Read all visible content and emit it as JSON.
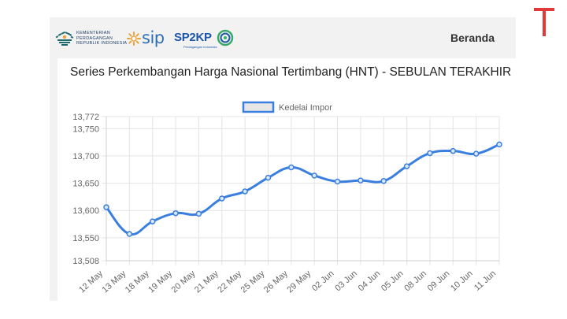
{
  "header": {
    "kemendag_lines": [
      "KEMENTERIAN",
      "PERDAGANGAN",
      "REPUBLIK INDONESIA"
    ],
    "sip_label": "sip",
    "sp2kp_label": "SP2KP",
    "sp2kp_sub": "Perdagangan Indonesia",
    "nav_home": "Beranda"
  },
  "colors": {
    "series": "#3a7fe0",
    "brand_t": "#e03a3a",
    "kemendag": "#1f6b6b",
    "sip": "#2f6fb5",
    "sp2kp": "#1d58a8"
  },
  "chart_data": {
    "type": "line",
    "title": "Series Perkembangan Harga Nasional Tertimbang (HNT) - SEBULAN TERAKHIR",
    "categories": [
      "12 May",
      "13 May",
      "18 May",
      "19 May",
      "20 May",
      "21 May",
      "22 May",
      "25 May",
      "26 May",
      "29 May",
      "02 Jun",
      "03 Jun",
      "04 Jun",
      "05 Jun",
      "08 Jun",
      "09 Jun",
      "10 Jun",
      "11 Jun"
    ],
    "series": [
      {
        "name": "Kedelai Impor",
        "values": [
          13606,
          13557,
          13580,
          13595,
          13594,
          13622,
          13635,
          13660,
          13679,
          13664,
          13653,
          13655,
          13654,
          13681,
          13705,
          13709,
          13704,
          13721
        ]
      }
    ],
    "yticks": [
      "13,772",
      "13,750",
      "13,700",
      "13,650",
      "13,600",
      "13,550",
      "13,508"
    ],
    "ylim": [
      13508,
      13772
    ],
    "grid": true,
    "legend_position": "top"
  }
}
